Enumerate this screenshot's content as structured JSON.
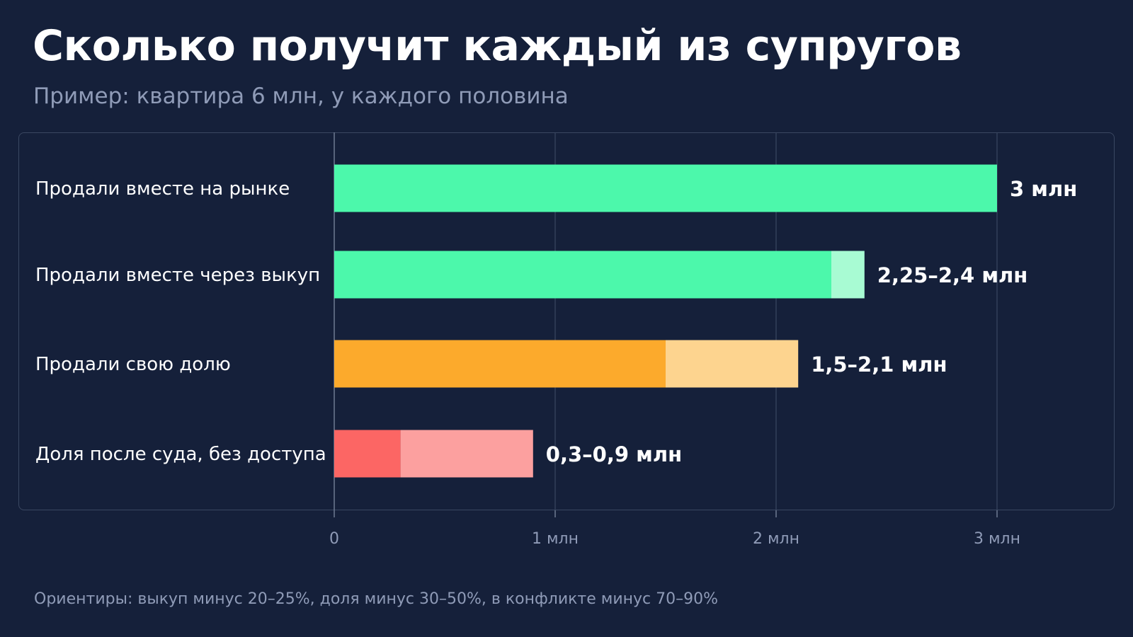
{
  "header": {
    "title": "Сколько получит каждый из супругов",
    "subtitle": "Пример: квартира 6 млн, у каждого половина"
  },
  "footnote": "Ориентиры: выкуп минус 20–25%, доля минус 30–50%, в конфликте минус 70–90%",
  "chart_data": {
    "type": "bar",
    "orientation": "horizontal",
    "title": "Сколько получит каждый из супругов",
    "subtitle": "Пример: квартира 6 млн, у каждого половина",
    "xlim": [
      0,
      3
    ],
    "x_unit": "млн",
    "grid": true,
    "x_ticks": [
      {
        "value": 0,
        "label": "0"
      },
      {
        "value": 1,
        "label": "1 млн"
      },
      {
        "value": 2,
        "label": "2 млн"
      },
      {
        "value": 3,
        "label": "3 млн"
      }
    ],
    "categories": [
      "Продали вместе на рынке",
      "Продали вместе через выкуп",
      "Продали свою долю",
      "Доля после суда, без доступа"
    ],
    "ranges": [
      {
        "low": 3,
        "high": 3,
        "label": "3 млн",
        "color": "#4cf8ab",
        "light_color": "#a8fbd3"
      },
      {
        "low": 2.25,
        "high": 2.4,
        "label": "2,25–2,4 млн",
        "color": "#4cf8ab",
        "light_color": "#a8fbd3"
      },
      {
        "low": 1.5,
        "high": 2.1,
        "label": "1,5–2,1 млн",
        "color": "#fcaa2c",
        "light_color": "#fdd48f"
      },
      {
        "low": 0.3,
        "high": 0.9,
        "label": "0,3–0,9 млн",
        "color": "#fc6664",
        "light_color": "#fca09f"
      }
    ]
  },
  "colors": {
    "background": "#15203a",
    "gridline": "#3a4761",
    "axis_line": "#6e7a92",
    "text_muted": "#8f9bb7"
  }
}
